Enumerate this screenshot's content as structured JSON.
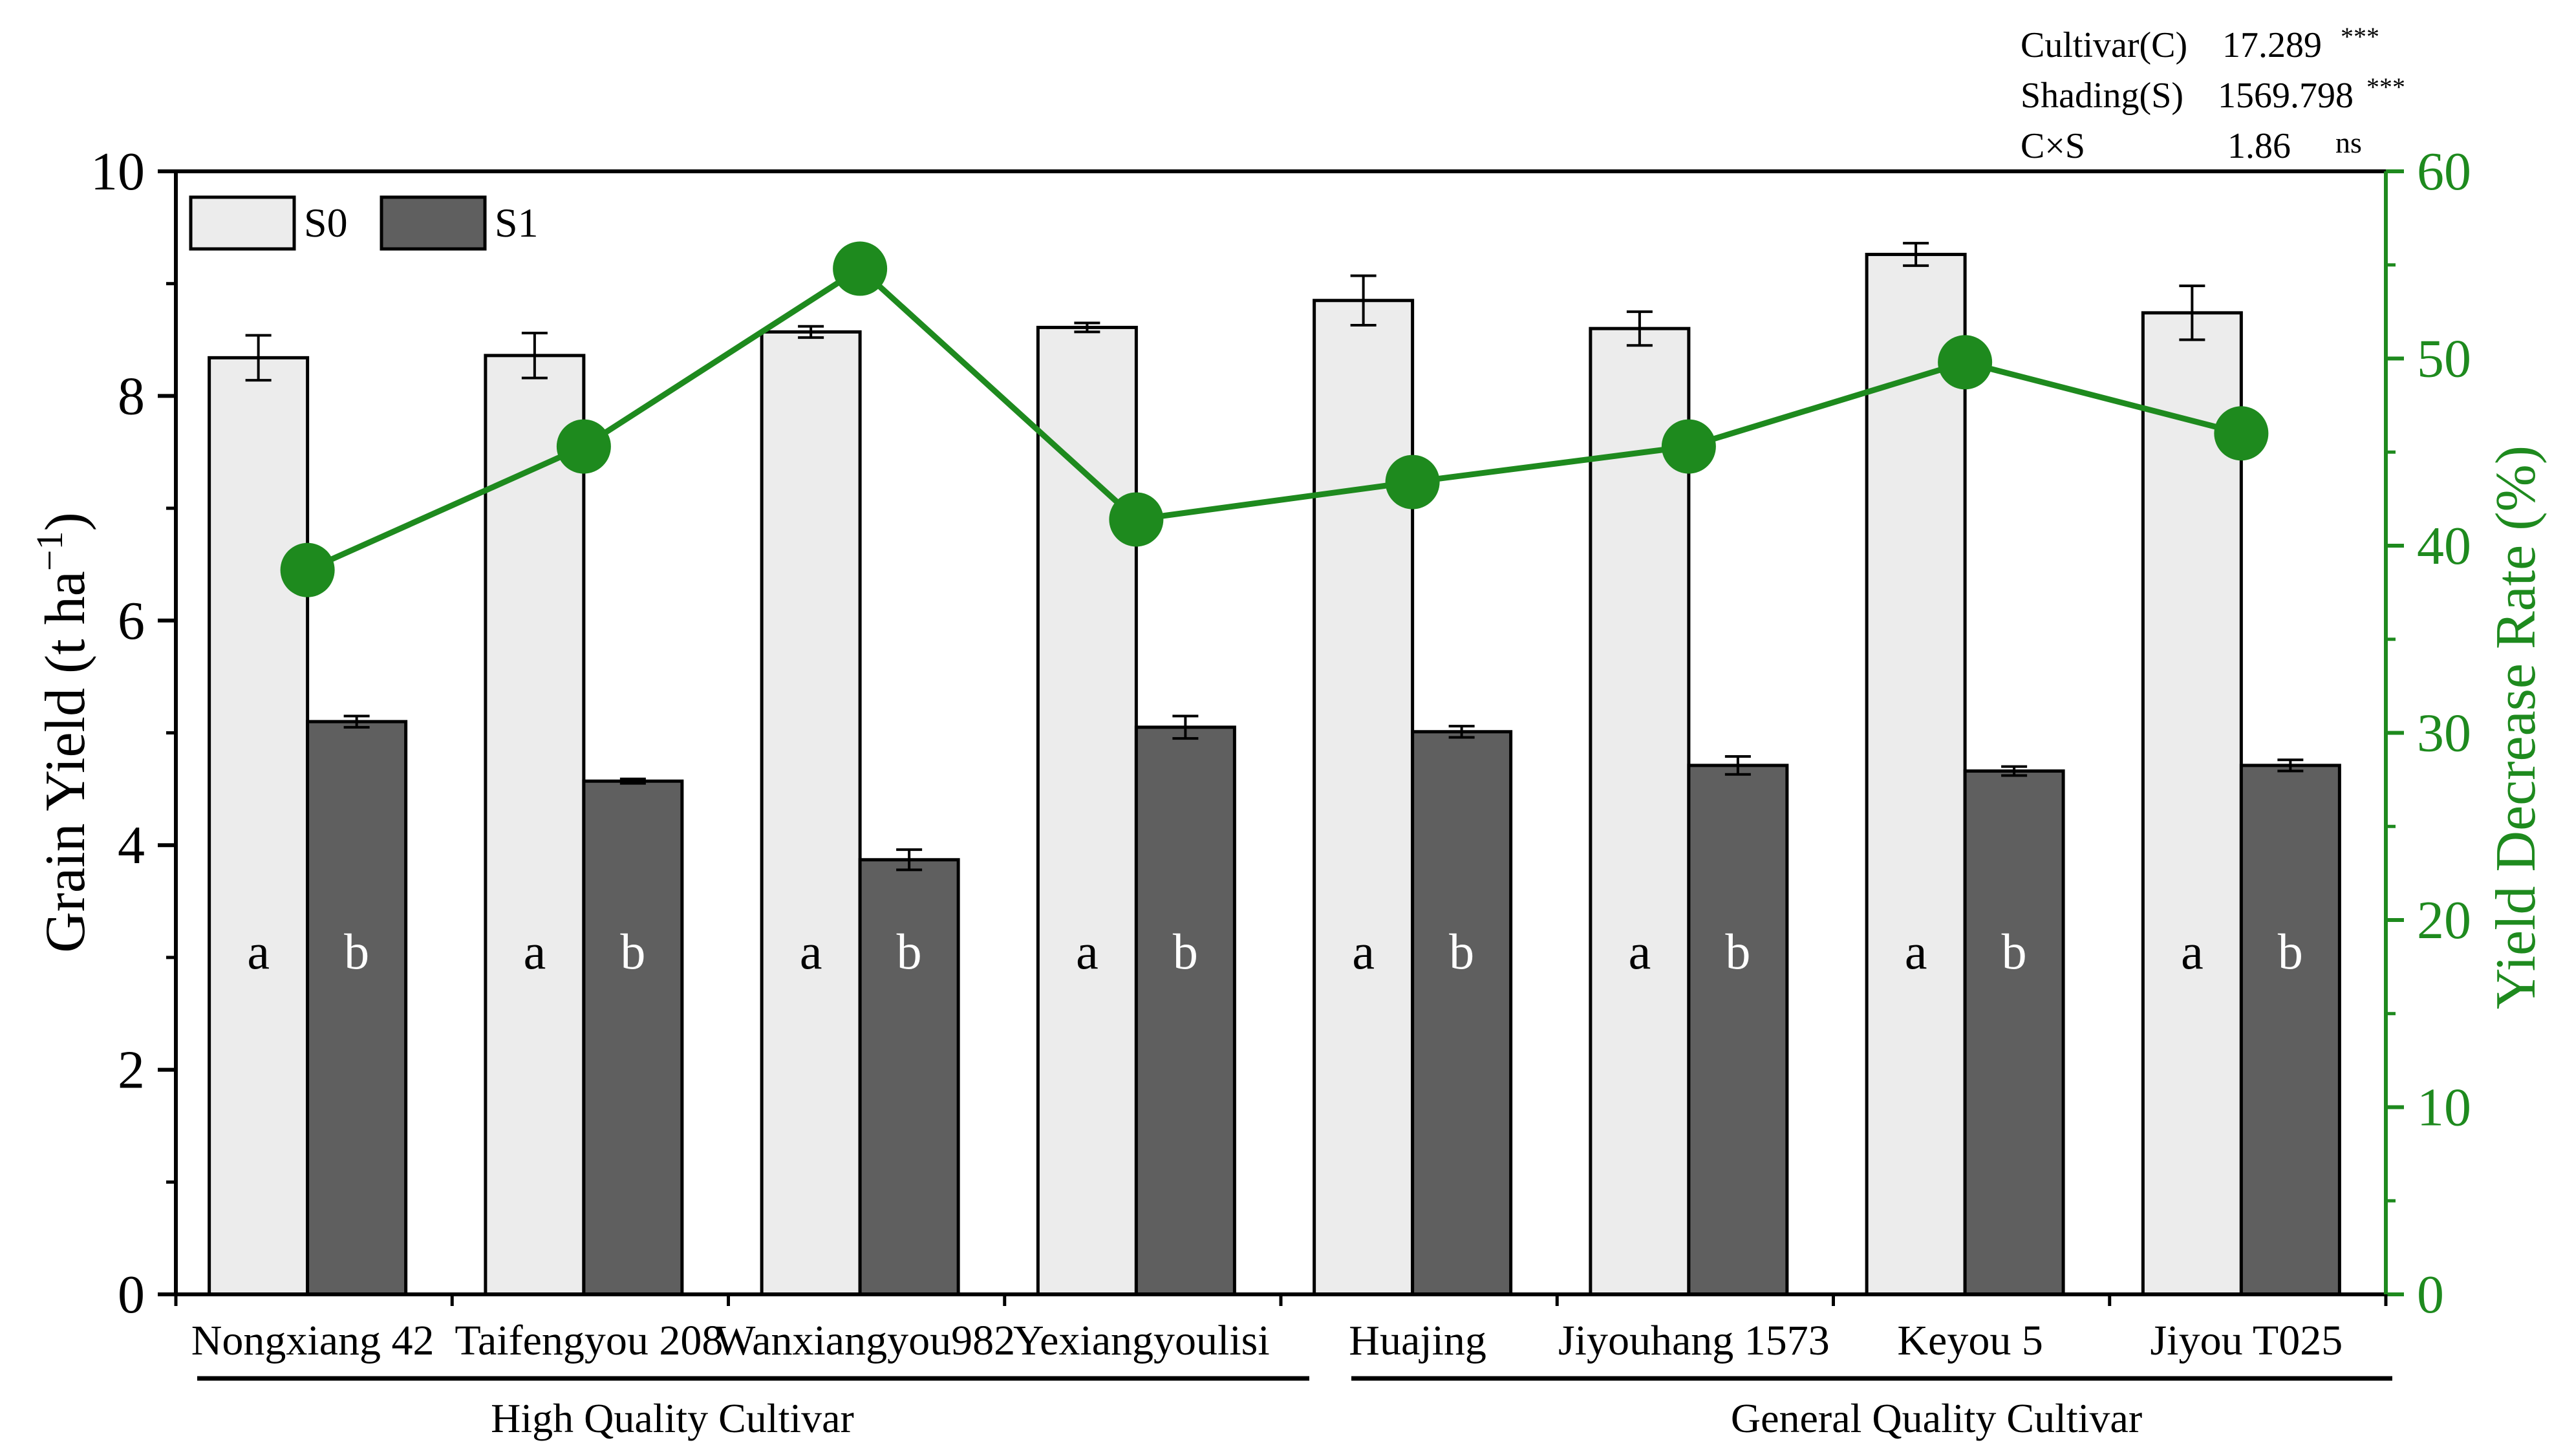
{
  "chart_data": {
    "type": "bar",
    "categories": [
      "Nongxiang 42",
      "Taifengyou 208",
      "Wanxiangyou982",
      "Yexiangyoulisi",
      "Huajing",
      "Jiyouhang 1573",
      "Keyou 5",
      "Jiyou T025"
    ],
    "series": [
      {
        "name": "S0",
        "type": "bar",
        "axis": "left",
        "color": "#ececec",
        "values": [
          8.34,
          8.36,
          8.57,
          8.61,
          8.85,
          8.6,
          9.26,
          8.74
        ],
        "errors": [
          0.2,
          0.2,
          0.05,
          0.04,
          0.22,
          0.15,
          0.1,
          0.24
        ],
        "letters": [
          "a",
          "a",
          "a",
          "a",
          "a",
          "a",
          "a",
          "a"
        ]
      },
      {
        "name": "S1",
        "type": "bar",
        "axis": "left",
        "color": "#5f5f5f",
        "values": [
          5.1,
          4.57,
          3.87,
          5.05,
          5.01,
          4.71,
          4.66,
          4.71
        ],
        "errors": [
          0.05,
          0.02,
          0.09,
          0.1,
          0.05,
          0.08,
          0.04,
          0.05
        ],
        "letters": [
          "b",
          "b",
          "b",
          "b",
          "b",
          "b",
          "b",
          "b"
        ]
      },
      {
        "name": "Yield Decrease Rate",
        "type": "line",
        "axis": "right",
        "color": "#1e8a1e",
        "values": [
          38.7,
          45.3,
          54.8,
          41.4,
          43.4,
          45.3,
          49.8,
          46.0
        ]
      }
    ],
    "ylabel_main": "Grain Yield",
    "ylabel_unit": "(t ha",
    "ylabel_sup": "−1",
    "ylabel_close": ")",
    "ylim": [
      0,
      10
    ],
    "yticks": [
      "0",
      "2",
      "4",
      "6",
      "8",
      "10"
    ],
    "y2label": "Yield Decrease Rate (%)",
    "y2lim": [
      0,
      60
    ],
    "y2ticks": [
      "0",
      "10",
      "20",
      "30",
      "40",
      "50",
      "60"
    ],
    "groups": [
      {
        "label": "High Quality Cultivar",
        "categories": [
          "Nongxiang 42",
          "Taifengyou 208",
          "Wanxiangyou982",
          "Yexiangyoulisi"
        ]
      },
      {
        "label": "General Quality Cultivar",
        "categories": [
          "Huajing",
          "Jiyouhang 1573",
          "Keyou 5",
          "Jiyou T025"
        ]
      }
    ],
    "anova": [
      {
        "label": "Cultivar(C)",
        "value": "17.289",
        "sig": "***"
      },
      {
        "label": "Shading(S)",
        "value": "1569.798",
        "sig": "***"
      },
      {
        "label": "C×S",
        "value": "1.86",
        "sig": "ns"
      }
    ],
    "legend": [
      "S0",
      "S1"
    ],
    "legend_position": "top-left"
  }
}
